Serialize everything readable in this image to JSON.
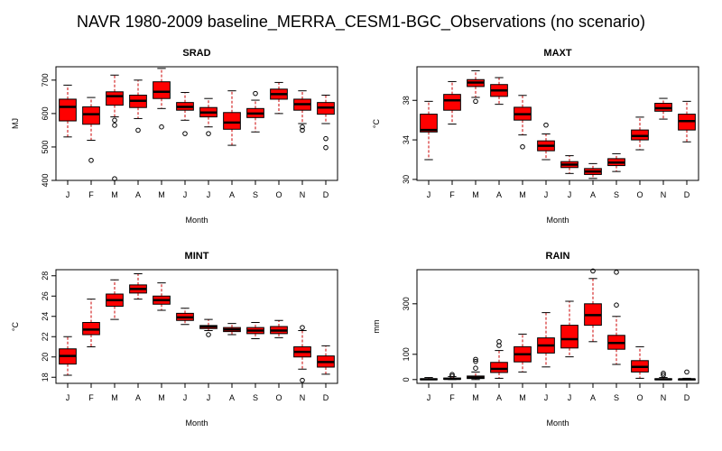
{
  "title": "NAVR 1980-2009 baseline_MERRA_CESM1-BGC_Observations (no scenario)",
  "colors": {
    "box_fill": "#ff0000",
    "whisker": "#cc0000",
    "median": "#000000"
  },
  "chart_data": [
    {
      "type": "box",
      "title": "SRAD",
      "xlabel": "Month",
      "ylabel": "MJ",
      "categories": [
        "J",
        "F",
        "M",
        "A",
        "M",
        "J",
        "J",
        "A",
        "S",
        "O",
        "N",
        "D"
      ],
      "ylim": [
        400,
        740
      ],
      "yticks": [
        400,
        500,
        600,
        700
      ],
      "boxes": [
        {
          "min": 530,
          "q1": 578,
          "median": 620,
          "q3": 643,
          "max": 685,
          "outliers": []
        },
        {
          "min": 520,
          "q1": 568,
          "median": 598,
          "q3": 620,
          "max": 648,
          "outliers": [
            460
          ]
        },
        {
          "min": 590,
          "q1": 625,
          "median": 652,
          "q3": 665,
          "max": 715,
          "outliers": [
            580,
            565,
            405
          ]
        },
        {
          "min": 585,
          "q1": 618,
          "median": 638,
          "q3": 655,
          "max": 700,
          "outliers": [
            550
          ]
        },
        {
          "min": 615,
          "q1": 645,
          "median": 665,
          "q3": 695,
          "max": 735,
          "outliers": [
            560
          ]
        },
        {
          "min": 580,
          "q1": 610,
          "median": 620,
          "q3": 633,
          "max": 663,
          "outliers": [
            540
          ]
        },
        {
          "min": 560,
          "q1": 590,
          "median": 603,
          "q3": 618,
          "max": 645,
          "outliers": [
            540
          ]
        },
        {
          "min": 505,
          "q1": 553,
          "median": 573,
          "q3": 603,
          "max": 668,
          "outliers": []
        },
        {
          "min": 545,
          "q1": 588,
          "median": 600,
          "q3": 615,
          "max": 640,
          "outliers": [
            660
          ]
        },
        {
          "min": 600,
          "q1": 643,
          "median": 658,
          "q3": 673,
          "max": 693,
          "outliers": []
        },
        {
          "min": 570,
          "q1": 610,
          "median": 628,
          "q3": 643,
          "max": 668,
          "outliers": [
            560,
            550
          ]
        },
        {
          "min": 570,
          "q1": 598,
          "median": 618,
          "q3": 633,
          "max": 655,
          "outliers": [
            525,
            498
          ]
        }
      ]
    },
    {
      "type": "box",
      "title": "MAXT",
      "xlabel": "Month",
      "ylabel": "°C",
      "categories": [
        "J",
        "F",
        "M",
        "A",
        "M",
        "J",
        "J",
        "A",
        "S",
        "O",
        "N",
        "D"
      ],
      "ylim": [
        29.9,
        41.4
      ],
      "yticks": [
        30,
        34,
        38
      ],
      "boxes": [
        {
          "min": 32.0,
          "q1": 34.8,
          "median": 35.0,
          "q3": 36.6,
          "max": 37.9,
          "outliers": []
        },
        {
          "min": 35.6,
          "q1": 37.0,
          "median": 38.0,
          "q3": 38.6,
          "max": 39.9,
          "outliers": []
        },
        {
          "min": 38.3,
          "q1": 39.4,
          "median": 39.8,
          "q3": 40.1,
          "max": 41.0,
          "outliers": [
            37.9
          ]
        },
        {
          "min": 37.6,
          "q1": 38.4,
          "median": 39.0,
          "q3": 39.6,
          "max": 40.3,
          "outliers": []
        },
        {
          "min": 34.5,
          "q1": 36.0,
          "median": 36.6,
          "q3": 37.3,
          "max": 38.5,
          "outliers": [
            33.3
          ]
        },
        {
          "min": 32.0,
          "q1": 32.9,
          "median": 33.4,
          "q3": 33.9,
          "max": 34.6,
          "outliers": [
            35.5
          ]
        },
        {
          "min": 30.6,
          "q1": 31.2,
          "median": 31.5,
          "q3": 31.8,
          "max": 32.4,
          "outliers": []
        },
        {
          "min": 30.1,
          "q1": 30.5,
          "median": 30.8,
          "q3": 31.1,
          "max": 31.6,
          "outliers": []
        },
        {
          "min": 30.8,
          "q1": 31.4,
          "median": 31.7,
          "q3": 32.1,
          "max": 32.6,
          "outliers": []
        },
        {
          "min": 33.0,
          "q1": 34.0,
          "median": 34.4,
          "q3": 35.0,
          "max": 36.3,
          "outliers": []
        },
        {
          "min": 36.1,
          "q1": 36.9,
          "median": 37.2,
          "q3": 37.7,
          "max": 38.2,
          "outliers": []
        },
        {
          "min": 33.8,
          "q1": 35.0,
          "median": 35.9,
          "q3": 36.6,
          "max": 37.9,
          "outliers": []
        }
      ]
    },
    {
      "type": "box",
      "title": "MINT",
      "xlabel": "Month",
      "ylabel": "°C",
      "categories": [
        "J",
        "F",
        "M",
        "A",
        "M",
        "J",
        "J",
        "A",
        "S",
        "O",
        "N",
        "D"
      ],
      "ylim": [
        17.4,
        28.6
      ],
      "yticks": [
        18,
        20,
        22,
        24,
        26,
        28
      ],
      "boxes": [
        {
          "min": 18.2,
          "q1": 19.3,
          "median": 20.1,
          "q3": 20.8,
          "max": 22.0,
          "outliers": []
        },
        {
          "min": 21.0,
          "q1": 22.2,
          "median": 22.7,
          "q3": 23.4,
          "max": 25.7,
          "outliers": []
        },
        {
          "min": 23.7,
          "q1": 25.0,
          "median": 25.6,
          "q3": 26.2,
          "max": 27.6,
          "outliers": []
        },
        {
          "min": 25.7,
          "q1": 26.3,
          "median": 26.7,
          "q3": 27.1,
          "max": 28.2,
          "outliers": []
        },
        {
          "min": 24.6,
          "q1": 25.2,
          "median": 25.6,
          "q3": 26.0,
          "max": 27.3,
          "outliers": []
        },
        {
          "min": 23.2,
          "q1": 23.6,
          "median": 23.9,
          "q3": 24.3,
          "max": 24.8,
          "outliers": []
        },
        {
          "min": 22.6,
          "q1": 22.8,
          "median": 23.0,
          "q3": 23.1,
          "max": 23.7,
          "outliers": [
            22.2
          ]
        },
        {
          "min": 22.2,
          "q1": 22.5,
          "median": 22.7,
          "q3": 22.9,
          "max": 23.3,
          "outliers": []
        },
        {
          "min": 21.8,
          "q1": 22.3,
          "median": 22.6,
          "q3": 22.9,
          "max": 23.4,
          "outliers": []
        },
        {
          "min": 21.9,
          "q1": 22.3,
          "median": 22.6,
          "q3": 23.0,
          "max": 23.6,
          "outliers": []
        },
        {
          "min": 18.8,
          "q1": 20.0,
          "median": 20.5,
          "q3": 21.0,
          "max": 22.6,
          "outliers": [
            22.9,
            17.7
          ]
        },
        {
          "min": 18.3,
          "q1": 19.0,
          "median": 19.5,
          "q3": 20.1,
          "max": 21.1,
          "outliers": []
        }
      ]
    },
    {
      "type": "box",
      "title": "RAIN",
      "xlabel": "Month",
      "ylabel": "mm",
      "categories": [
        "J",
        "F",
        "M",
        "A",
        "M",
        "J",
        "J",
        "A",
        "S",
        "O",
        "N",
        "D"
      ],
      "ylim": [
        -15,
        435
      ],
      "yticks": [
        0,
        100,
        300
      ],
      "boxes": [
        {
          "min": 0,
          "q1": 0,
          "median": 1,
          "q3": 3,
          "max": 8,
          "outliers": []
        },
        {
          "min": 0,
          "q1": 1,
          "median": 3,
          "q3": 6,
          "max": 12,
          "outliers": [
            20,
            14
          ]
        },
        {
          "min": 0,
          "q1": 4,
          "median": 8,
          "q3": 14,
          "max": 30,
          "outliers": [
            45,
            72,
            80
          ]
        },
        {
          "min": 5,
          "q1": 28,
          "median": 42,
          "q3": 68,
          "max": 115,
          "outliers": [
            135,
            150
          ]
        },
        {
          "min": 30,
          "q1": 70,
          "median": 100,
          "q3": 130,
          "max": 180,
          "outliers": []
        },
        {
          "min": 50,
          "q1": 105,
          "median": 135,
          "q3": 165,
          "max": 265,
          "outliers": []
        },
        {
          "min": 90,
          "q1": 125,
          "median": 160,
          "q3": 215,
          "max": 310,
          "outliers": []
        },
        {
          "min": 150,
          "q1": 215,
          "median": 255,
          "q3": 300,
          "max": 400,
          "outliers": [
            430
          ]
        },
        {
          "min": 60,
          "q1": 120,
          "median": 145,
          "q3": 175,
          "max": 250,
          "outliers": [
            295,
            425
          ]
        },
        {
          "min": 5,
          "q1": 30,
          "median": 50,
          "q3": 75,
          "max": 130,
          "outliers": []
        },
        {
          "min": 0,
          "q1": 0,
          "median": 1,
          "q3": 3,
          "max": 8,
          "outliers": [
            18,
            25
          ]
        },
        {
          "min": 0,
          "q1": 0,
          "median": 1,
          "q3": 2,
          "max": 5,
          "outliers": [
            30
          ]
        }
      ]
    }
  ]
}
